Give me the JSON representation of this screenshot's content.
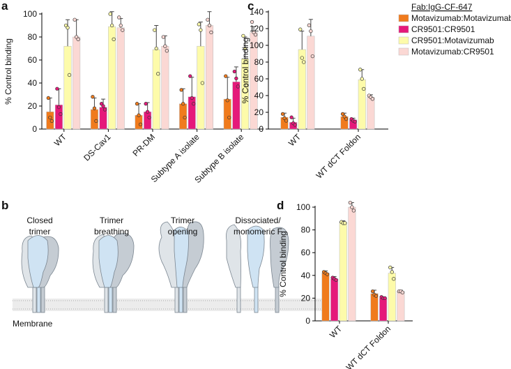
{
  "chart_data": [
    {
      "type": "bar",
      "panel": "a",
      "y_label": "% Control binding",
      "categories": [
        "WT",
        "DS-Cav1",
        "PR-DM",
        "Subtype A isolate",
        "Subtype B isolate"
      ],
      "ylim": [
        0,
        100
      ],
      "yticks": [
        0,
        20,
        40,
        60,
        80,
        100
      ],
      "series": [
        {
          "color": "#f07b1d",
          "values": [
            15,
            17,
            12,
            22,
            26
          ],
          "errors": [
            12,
            10,
            10,
            13,
            19
          ],
          "points": [
            [
              27,
              10,
              7
            ],
            [
              28,
              18,
              7
            ],
            [
              22,
              12,
              4
            ],
            [
              34,
              22,
              10
            ],
            [
              46,
              25,
              10
            ]
          ]
        },
        {
          "color": "#e5197a",
          "values": [
            21,
            19,
            15,
            28,
            41
          ],
          "errors": [
            14,
            7,
            8,
            17,
            13
          ],
          "points": [
            [
              35,
              19,
              13
            ],
            [
              22,
              20,
              17
            ],
            [
              22,
              15,
              10
            ],
            [
              46,
              27,
              22
            ],
            [
              50,
              44,
              37
            ]
          ]
        },
        {
          "color": "#fdfbaa",
          "values": [
            72,
            89,
            69,
            72,
            61
          ],
          "errors": [
            23,
            13,
            21,
            21,
            19
          ],
          "points": [
            [
              90,
              88,
              47
            ],
            [
              100,
              90,
              78
            ],
            [
              86,
              70,
              48
            ],
            [
              91,
              86,
              40
            ],
            [
              81,
              70,
              38
            ]
          ]
        },
        {
          "color": "#fbd8d4",
          "values": [
            80,
            88,
            72,
            90,
            84
          ],
          "errors": [
            15,
            8,
            9,
            12,
            5
          ],
          "points": [
            [
              95,
              80,
              78
            ],
            [
              97,
              90,
              86
            ],
            [
              80,
              72,
              68
            ],
            [
              95,
              90,
              84
            ],
            [
              93,
              84,
              82
            ]
          ]
        }
      ]
    },
    {
      "type": "bar",
      "panel": "c",
      "y_label": "% Control binding",
      "categories": [
        "WT",
        "WT dCT Foldon"
      ],
      "ylim": [
        0,
        140
      ],
      "yticks": [
        0,
        20,
        40,
        60,
        80,
        100,
        120,
        140
      ],
      "legend": "right",
      "legend_title": "Fab:IgG-CF-647",
      "series": [
        {
          "name": "Motavizumab:Motavizumab",
          "color": "#f07b1d",
          "values": [
            14,
            15
          ],
          "errors": [
            5,
            4
          ],
          "points": [
            [
              18,
              13,
              10
            ],
            [
              18,
              15,
              12
            ]
          ]
        },
        {
          "name": "CR9501:CR9501",
          "color": "#e5197a",
          "values": [
            8,
            11
          ],
          "errors": [
            5,
            2
          ],
          "points": [
            [
              14,
              7,
              5
            ],
            [
              12,
              10,
              9
            ]
          ]
        },
        {
          "name": "CR9501:Motavizumab",
          "color": "#fdfbaa",
          "values": [
            95,
            59
          ],
          "errors": [
            22,
            12
          ],
          "points": [
            [
              119,
              85,
              80
            ],
            [
              71,
              60,
              48
            ]
          ]
        },
        {
          "name": "Motavizumab:CR9501",
          "color": "#fbd8d4",
          "values": [
            111,
            38
          ],
          "errors": [
            20,
            3
          ],
          "points": [
            [
              124,
              117,
              87
            ],
            [
              40,
              38,
              36
            ]
          ]
        }
      ]
    },
    {
      "type": "bar",
      "panel": "d",
      "y_label": "% Control binding",
      "categories": [
        "WT",
        "WT dCT Foldon"
      ],
      "ylim": [
        0,
        100
      ],
      "yticks": [
        0,
        20,
        40,
        60,
        80,
        100
      ],
      "series": [
        {
          "color": "#f07b1d",
          "values": [
            42,
            24
          ],
          "errors": [
            2,
            3
          ],
          "points": [
            [
              43,
              42,
              41
            ],
            [
              26,
              23,
              22
            ]
          ]
        },
        {
          "color": "#e5197a",
          "values": [
            37,
            20
          ],
          "errors": [
            2,
            1
          ],
          "points": [
            [
              38,
              37,
              36
            ],
            [
              21,
              20,
              20
            ]
          ]
        },
        {
          "color": "#fdfbaa",
          "values": [
            87,
            42
          ],
          "errors": [
            1,
            5
          ],
          "points": [
            [
              87,
              86,
              86
            ],
            [
              47,
              43,
              37
            ]
          ]
        },
        {
          "color": "#fbd8d4",
          "values": [
            100,
            26
          ],
          "errors": [
            4,
            1
          ],
          "points": [
            [
              104,
              100,
              97
            ],
            [
              26,
              26,
              25
            ]
          ]
        }
      ]
    }
  ],
  "diagram": {
    "panel": "b",
    "stages": [
      [
        "Closed",
        "trimer"
      ],
      [
        "Trimer",
        "breathing"
      ],
      [
        "Trimer",
        "opening"
      ],
      [
        "Dissociated/",
        "monomeric F"
      ]
    ],
    "membrane": "Membrane"
  }
}
